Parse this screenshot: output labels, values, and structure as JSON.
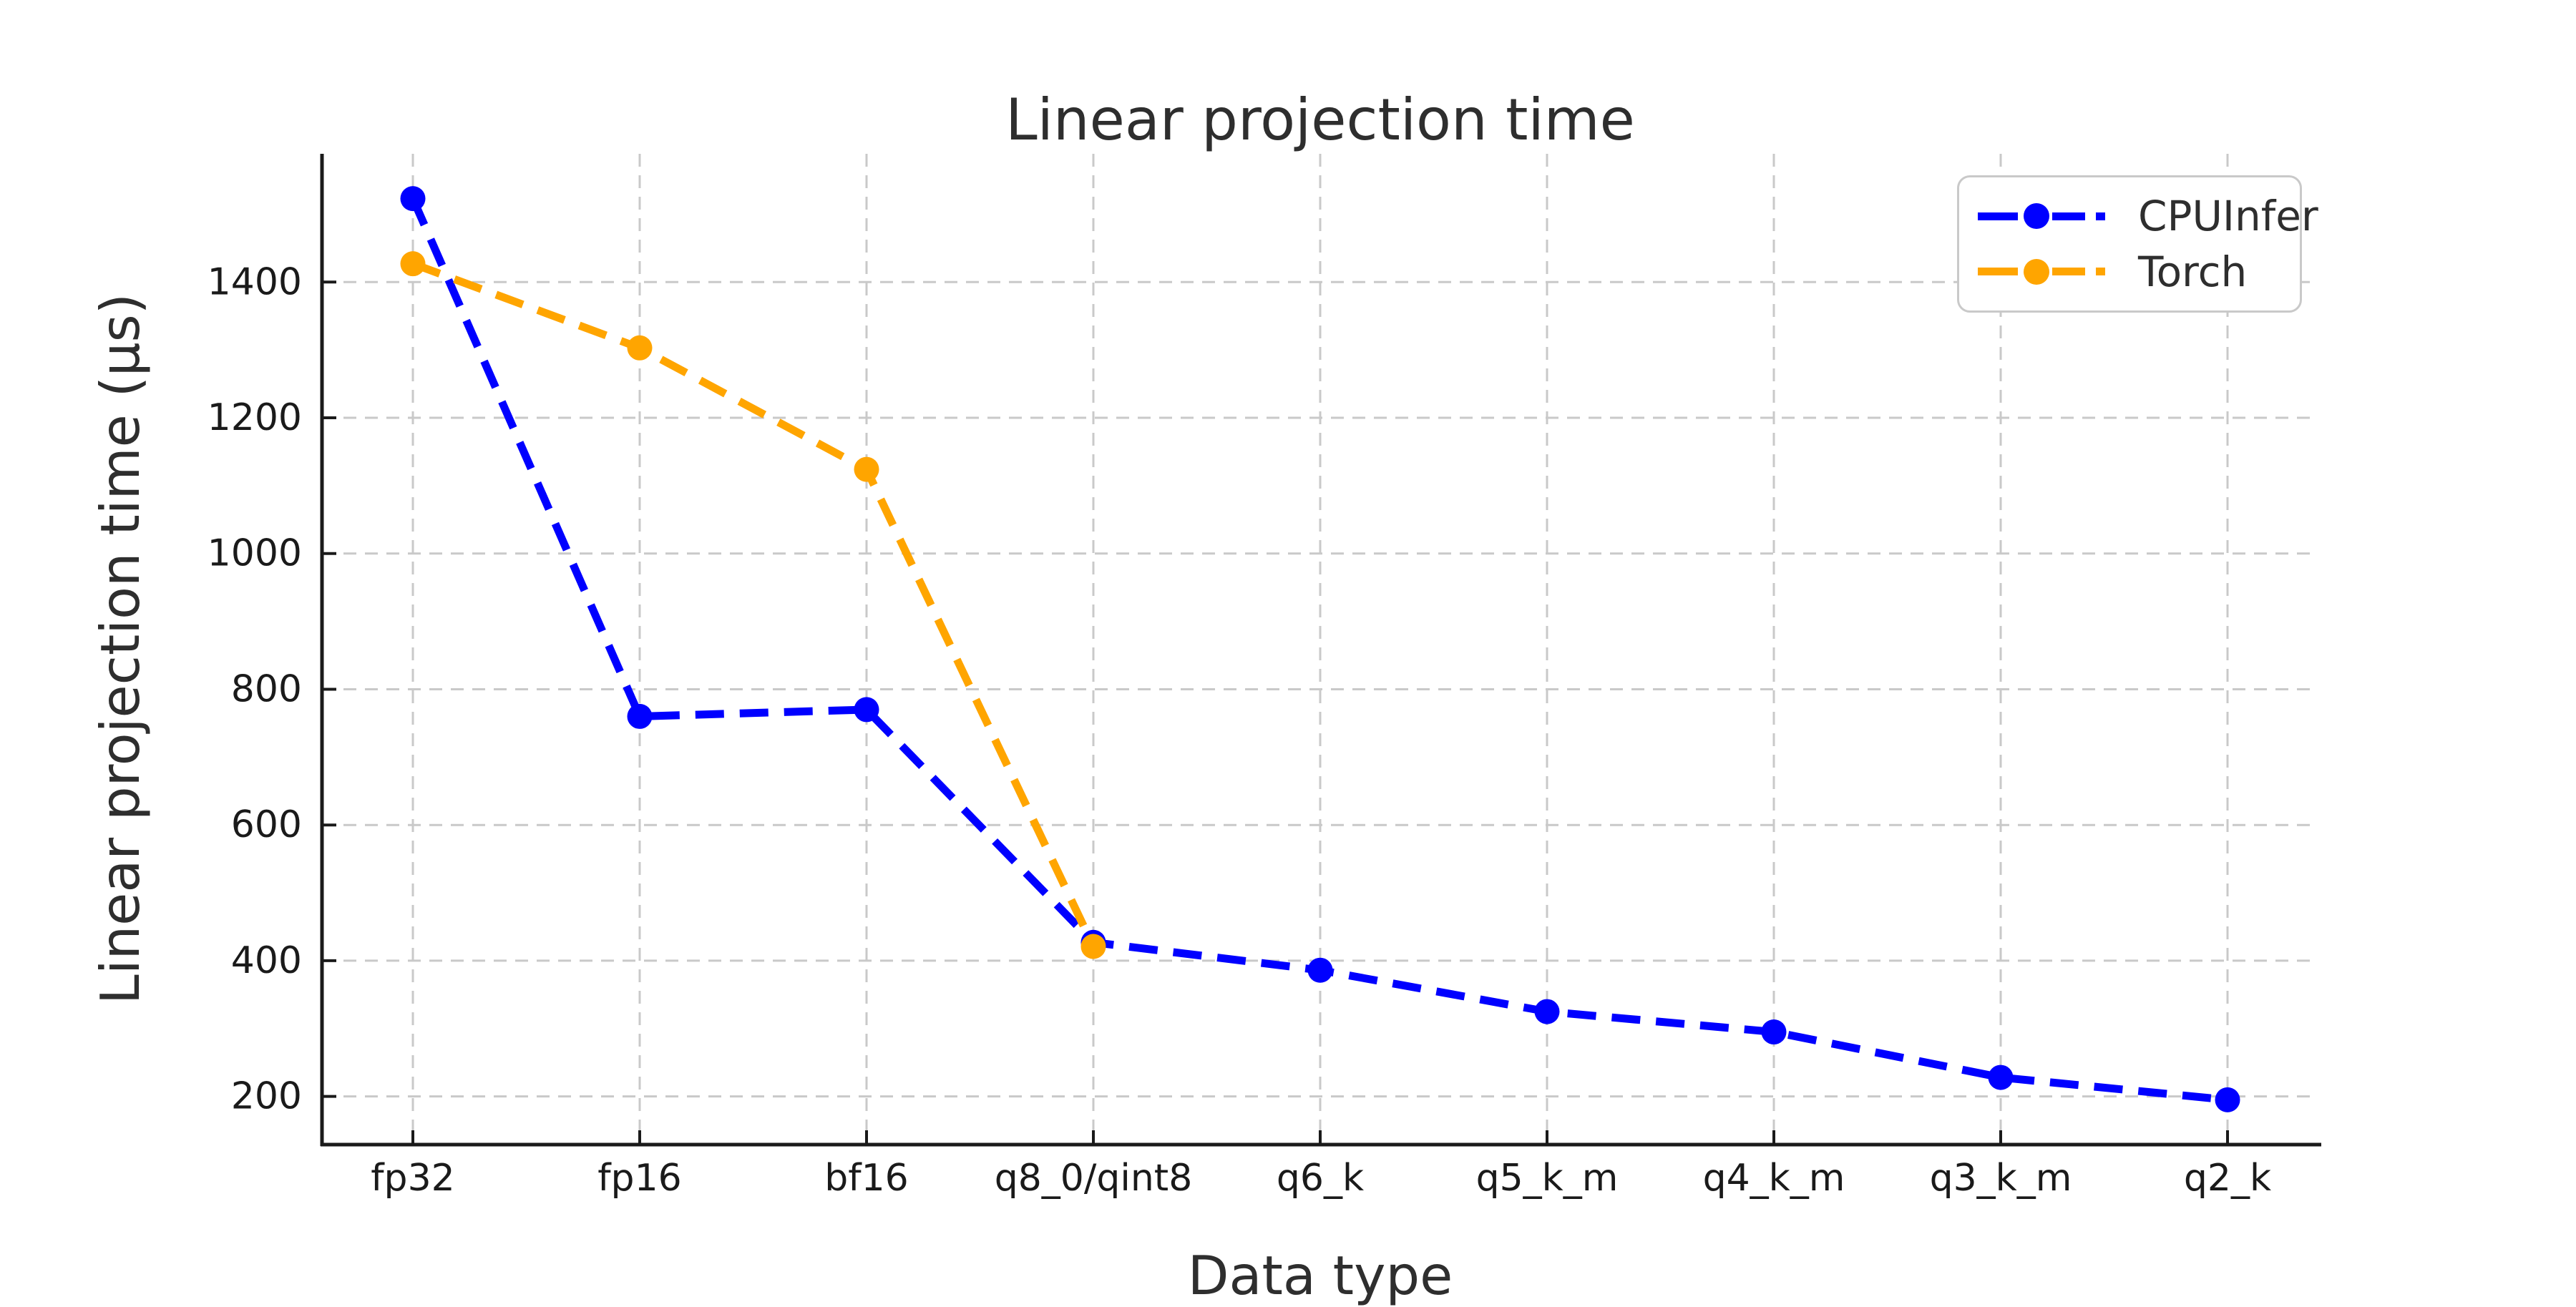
{
  "chart_data": {
    "type": "line",
    "title": "Linear projection time",
    "xlabel": "Data type",
    "ylabel": "Linear projection time (µs)",
    "categories": [
      "fp32",
      "fp16",
      "bf16",
      "q8_0/qint8",
      "q6_k",
      "q5_k_m",
      "q4_k_m",
      "q3_k_m",
      "q2_k"
    ],
    "yticks": [
      200,
      400,
      600,
      800,
      1000,
      1200,
      1400
    ],
    "ylim": [
      129,
      1589
    ],
    "grid": true,
    "grid_style": "dashed",
    "legend_position": "upper right",
    "series": [
      {
        "name": "CPUInfer",
        "color": "#0000ff",
        "marker": "circle",
        "linestyle": "dashed",
        "values": [
          1523,
          760,
          770,
          427,
          386,
          325,
          295,
          228,
          195
        ]
      },
      {
        "name": "Torch",
        "color": "#ffa500",
        "marker": "circle",
        "linestyle": "dashed",
        "values": [
          1427,
          1303,
          1124,
          421
        ]
      }
    ],
    "colors": {
      "grid": "#c9c9c9",
      "axis": "#1a1a1a",
      "tick_text": "#1a1a1a",
      "label_text": "#2e2e2e",
      "legend_border": "#c9c9c9",
      "background": "#ffffff"
    }
  }
}
